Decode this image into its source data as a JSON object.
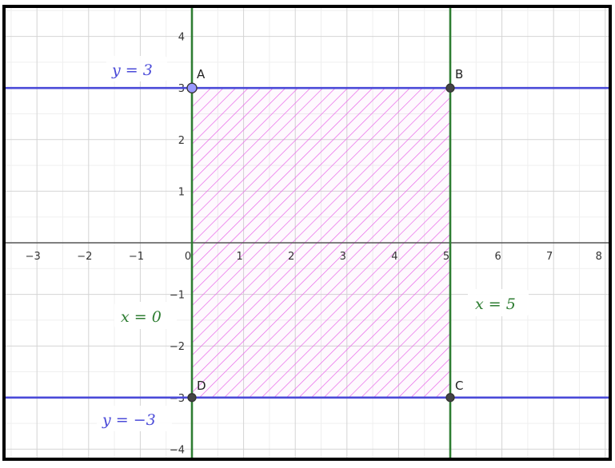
{
  "axes": {
    "x_range": [
      -3.5,
      8
    ],
    "y_range": [
      -4.1,
      4.5
    ],
    "x_ticks": [
      -3,
      -2,
      -1,
      0,
      1,
      2,
      3,
      4,
      5,
      6,
      7,
      8
    ],
    "y_ticks": [
      -4,
      -3,
      -2,
      -1,
      1,
      2,
      3,
      4
    ],
    "grid": true,
    "minor_grid": true
  },
  "x_tick_labels": [
    "−3",
    "−2",
    "−1",
    "0",
    "1",
    "2",
    "3",
    "4",
    "5",
    "6",
    "7",
    "8"
  ],
  "y_tick_labels": [
    "−4",
    "−3",
    "−2",
    "−1",
    "1",
    "2",
    "3",
    "4"
  ],
  "lines": {
    "h1": {
      "label": "y = 3",
      "y": 3,
      "color": "#4a4ad8"
    },
    "h2": {
      "label": "y = −3",
      "y": -3,
      "color": "#4a4ad8"
    },
    "v1": {
      "label": "x = 0",
      "x": 0,
      "color": "#2e7d32"
    },
    "v2": {
      "label": "x = 5",
      "x": 5,
      "color": "#2e7d32"
    }
  },
  "points": {
    "A": {
      "label": "A",
      "x": 0,
      "y": 3
    },
    "B": {
      "label": "B",
      "x": 5,
      "y": 3
    },
    "C": {
      "label": "C",
      "x": 5,
      "y": -3
    },
    "D": {
      "label": "D",
      "x": 0,
      "y": -3
    }
  },
  "region": {
    "hatch_color": "#e866e8",
    "corners": [
      "A",
      "B",
      "C",
      "D"
    ]
  },
  "colors": {
    "grid_minor": "#efefef",
    "grid_major": "#d4d4d4",
    "axis": "#555555",
    "frame": "#000000"
  }
}
